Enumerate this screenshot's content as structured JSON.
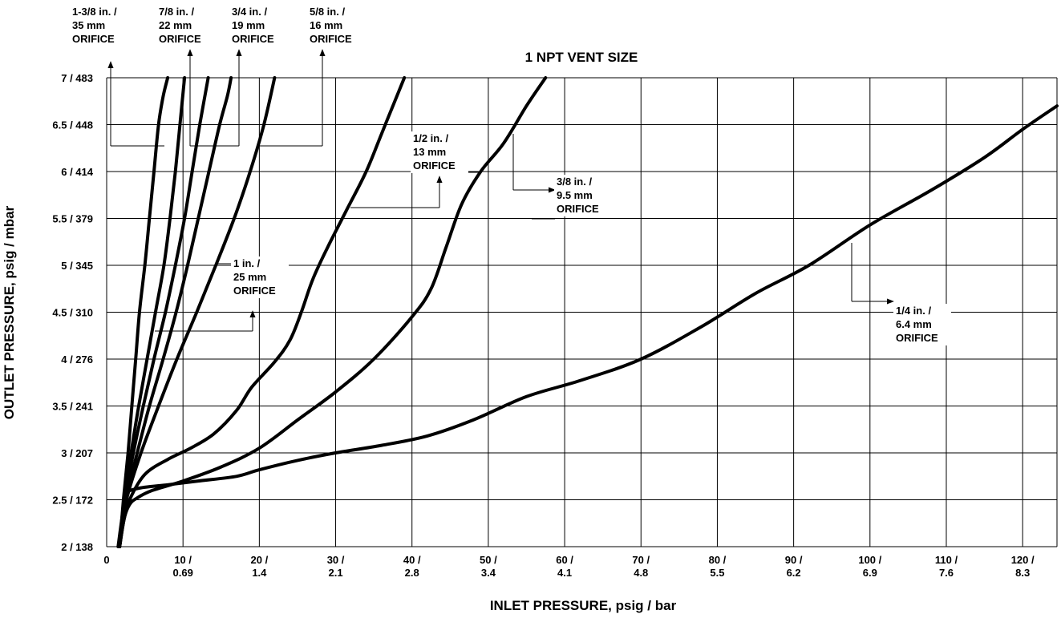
{
  "chart_data": {
    "type": "line",
    "title": "1 NPT VENT SIZE",
    "xlabel": "INLET PRESSURE, psig / bar",
    "ylabel": "OUTLET PRESSURE, psig / mbar",
    "xlim": [
      0,
      124.5
    ],
    "ylim": [
      2,
      7
    ],
    "grid": true,
    "x_ticks": [
      {
        "value": 0,
        "line1": "0",
        "line2": ""
      },
      {
        "value": 10,
        "line1": "10 /",
        "line2": "0.69"
      },
      {
        "value": 20,
        "line1": "20 /",
        "line2": "1.4"
      },
      {
        "value": 30,
        "line1": "30 /",
        "line2": "2.1"
      },
      {
        "value": 40,
        "line1": "40 /",
        "line2": "2.8"
      },
      {
        "value": 50,
        "line1": "50 /",
        "line2": "3.4"
      },
      {
        "value": 60,
        "line1": "60 /",
        "line2": "4.1"
      },
      {
        "value": 70,
        "line1": "70 /",
        "line2": "4.8"
      },
      {
        "value": 80,
        "line1": "80 /",
        "line2": "5.5"
      },
      {
        "value": 90,
        "line1": "90 /",
        "line2": "6.2"
      },
      {
        "value": 100,
        "line1": "100 /",
        "line2": "6.9"
      },
      {
        "value": 110,
        "line1": "110 /",
        "line2": "7.6"
      },
      {
        "value": 120,
        "line1": "120 /",
        "line2": "8.3"
      }
    ],
    "y_ticks": [
      {
        "value": 2,
        "label": "2 / 138"
      },
      {
        "value": 2.5,
        "label": "2.5 / 172"
      },
      {
        "value": 3,
        "label": "3 / 207"
      },
      {
        "value": 3.5,
        "label": "3.5 / 241"
      },
      {
        "value": 4,
        "label": "4 / 276"
      },
      {
        "value": 4.5,
        "label": "4.5 / 310"
      },
      {
        "value": 5,
        "label": "5 / 345"
      },
      {
        "value": 5.5,
        "label": "5.5 / 379"
      },
      {
        "value": 6,
        "label": "6 / 414"
      },
      {
        "value": 6.5,
        "label": "6.5 / 448"
      },
      {
        "value": 7,
        "label": "7 / 483"
      }
    ],
    "series": [
      {
        "name": "1-3/8 in. / 35 mm ORIFICE",
        "x": [
          1.7,
          2.2,
          2.8,
          3.3,
          3.8,
          4.3,
          5.0,
          5.6,
          6.2,
          6.8,
          7.4,
          8.0
        ],
        "y": [
          2.0,
          2.5,
          3.0,
          3.5,
          4.0,
          4.5,
          5.0,
          5.5,
          6.0,
          6.5,
          6.8,
          7.0
        ]
      },
      {
        "name": "7/8 in. / 22 mm ORIFICE",
        "x": [
          1.7,
          2.3,
          3.2,
          4.2,
          5.3,
          6.4,
          7.5,
          8.3,
          9.0,
          9.6,
          10.2
        ],
        "y": [
          2.0,
          2.5,
          3.0,
          3.5,
          4.0,
          4.5,
          5.0,
          5.5,
          6.0,
          6.5,
          7.0
        ]
      },
      {
        "name": "3/4 in. / 19 mm ORIFICE",
        "x": [
          1.7,
          2.4,
          3.5,
          4.8,
          6.2,
          7.7,
          9.0,
          10.2,
          11.2,
          12.2,
          13.3
        ],
        "y": [
          2.0,
          2.5,
          3.0,
          3.5,
          4.0,
          4.5,
          5.0,
          5.5,
          6.0,
          6.5,
          7.0
        ]
      },
      {
        "name": "5/8 in. / 16 mm ORIFICE",
        "x": [
          1.7,
          2.5,
          4.0,
          5.6,
          7.4,
          9.1,
          10.6,
          12.0,
          13.4,
          14.8,
          15.8,
          16.3
        ],
        "y": [
          2.0,
          2.5,
          3.0,
          3.5,
          4.0,
          4.5,
          5.0,
          5.5,
          6.0,
          6.5,
          6.8,
          7.0
        ]
      },
      {
        "name": "1 in. / 25 mm ORIFICE",
        "x": [
          1.7,
          2.6,
          4.5,
          6.8,
          9.2,
          11.8,
          14.3,
          16.7,
          18.8,
          20.6,
          22.0
        ],
        "y": [
          2.0,
          2.5,
          3.0,
          3.5,
          4.0,
          4.5,
          5.0,
          5.5,
          6.0,
          6.5,
          7.0
        ]
      },
      {
        "name": "1/2 in. / 13 mm ORIFICE",
        "x": [
          1.7,
          2.3,
          3.0,
          5.0,
          8.0,
          11.0,
          14.0,
          17.0,
          19.0,
          22.0,
          24.0,
          25.5,
          27.0,
          29.0,
          31.5,
          34.0,
          36.0,
          38.0,
          39.0
        ],
        "y": [
          2.0,
          2.3,
          2.5,
          2.77,
          2.93,
          3.05,
          3.2,
          3.45,
          3.7,
          3.97,
          4.2,
          4.5,
          4.85,
          5.2,
          5.6,
          6.0,
          6.4,
          6.8,
          7.0
        ]
      },
      {
        "name": "3/8 in. / 9.5 mm ORIFICE",
        "x": [
          1.7,
          2.3,
          3.0,
          4.0,
          6.0,
          10.0,
          15.0,
          20.0,
          25.0,
          30.0,
          35.0,
          40.0,
          42.5,
          44.5,
          46.5,
          49.0,
          52.0,
          55.0,
          57.5
        ],
        "y": [
          2.0,
          2.3,
          2.45,
          2.52,
          2.6,
          2.7,
          2.85,
          3.05,
          3.35,
          3.65,
          4.0,
          4.45,
          4.75,
          5.2,
          5.65,
          6.0,
          6.3,
          6.7,
          7.0
        ]
      },
      {
        "name": "1/4 in. / 6.4 mm ORIFICE",
        "x": [
          1.5,
          2.0,
          2.5,
          4.0,
          8.0,
          12.0,
          17.0,
          20.0,
          25.0,
          30.0,
          36.0,
          42.0,
          48.0,
          55.0,
          62.0,
          70.0,
          78.0,
          85.0,
          92.0,
          100.0,
          108.0,
          115.0,
          120.0,
          124.5
        ],
        "y": [
          2.0,
          2.3,
          2.55,
          2.62,
          2.66,
          2.7,
          2.75,
          2.82,
          2.92,
          3.0,
          3.08,
          3.18,
          3.35,
          3.6,
          3.77,
          4.0,
          4.35,
          4.7,
          5.0,
          5.43,
          5.8,
          6.15,
          6.45,
          6.7
        ]
      }
    ],
    "annotations": [
      {
        "id": "1-3-8",
        "lines": [
          "1-3/8 in. /",
          "35 mm",
          "ORIFICE"
        ]
      },
      {
        "id": "7-8",
        "lines": [
          "7/8 in. /",
          "22 mm",
          "ORIFICE"
        ]
      },
      {
        "id": "3-4",
        "lines": [
          "3/4 in. /",
          "19 mm",
          "ORIFICE"
        ]
      },
      {
        "id": "5-8",
        "lines": [
          "5/8 in. /",
          "16 mm",
          "ORIFICE"
        ]
      },
      {
        "id": "1-in",
        "lines": [
          "1 in. /",
          "25 mm",
          "ORIFICE"
        ]
      },
      {
        "id": "1-2",
        "lines": [
          "1/2 in. /",
          "13 mm",
          "ORIFICE"
        ]
      },
      {
        "id": "3-8",
        "lines": [
          "3/8 in. /",
          "9.5 mm",
          "ORIFICE"
        ]
      },
      {
        "id": "1-4",
        "lines": [
          "1/4 in. /",
          "6.4 mm",
          "ORIFICE"
        ]
      }
    ]
  }
}
